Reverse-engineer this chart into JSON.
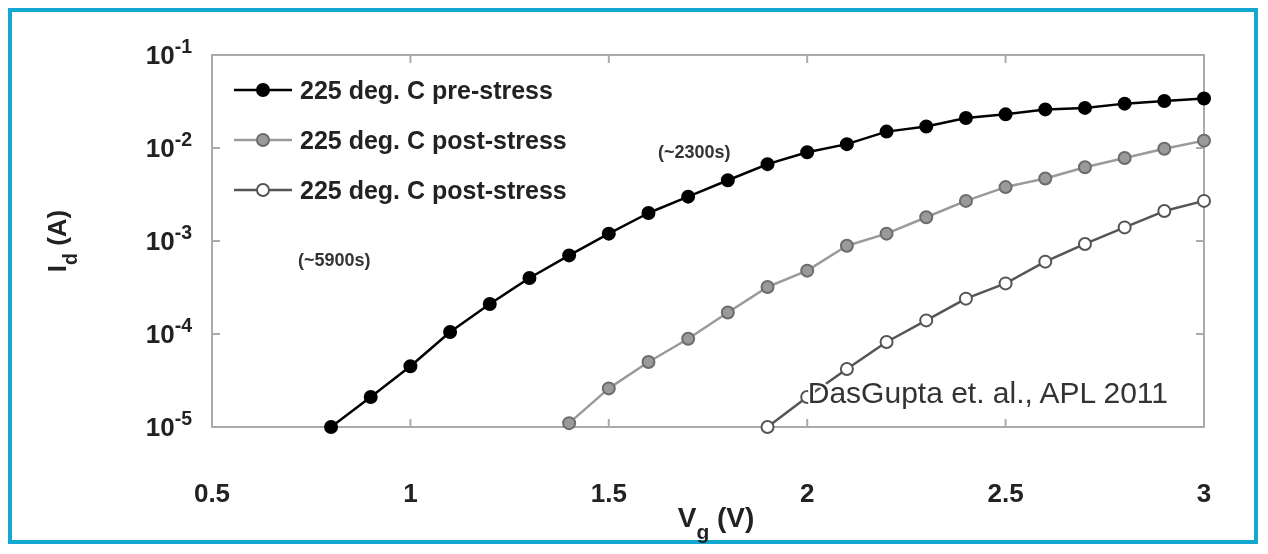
{
  "chart_data": {
    "type": "line",
    "xlabel": "V$_{g}$ (V)",
    "ylabel": "I$_{d}$ (A)",
    "log": "y",
    "xlim": [
      0.5,
      3
    ],
    "xticks": [
      0.5,
      1,
      1.5,
      2,
      2.5,
      3
    ],
    "ylim": [
      1e-05,
      0.1
    ],
    "yticks": [
      {
        "value": 0.1,
        "label": "10$^{-1}$"
      },
      {
        "value": 0.01,
        "label": "10$^{-2}$"
      },
      {
        "value": 0.001,
        "label": "10$^{-3}$"
      },
      {
        "value": 0.0001,
        "label": "10$^{-4}$"
      },
      {
        "value": 1e-05,
        "label": "10$^{-5}$"
      }
    ],
    "grid": false,
    "legend": "top left",
    "marker": "circle",
    "line_style": "solid",
    "series": [
      {
        "name": "225 deg. C pre-stress",
        "color": "#000000",
        "x": [
          0.8,
          0.9,
          1.0,
          1.1,
          1.2,
          1.3,
          1.4,
          1.5,
          1.6,
          1.7,
          1.8,
          1.9,
          2.0,
          2.1,
          2.2,
          2.3,
          2.4,
          2.5,
          2.6,
          2.7,
          2.8,
          2.9,
          3.0
        ],
        "values": [
          1e-05,
          2.1e-05,
          4.5e-05,
          0.000105,
          0.00021,
          0.0004,
          0.0007,
          0.0012,
          0.002,
          0.003,
          0.0045,
          0.0067,
          0.009,
          0.011,
          0.015,
          0.017,
          0.021,
          0.023,
          0.026,
          0.027,
          0.03,
          0.032,
          0.034
        ]
      },
      {
        "name": "225 deg. C post-stress",
        "color": "#9a9a9a",
        "x": [
          1.4,
          1.5,
          1.6,
          1.7,
          1.8,
          1.9,
          2.0,
          2.1,
          2.2,
          2.3,
          2.4,
          2.5,
          2.6,
          2.7,
          2.8,
          2.9,
          3.0
        ],
        "values": [
          1.1e-05,
          2.6e-05,
          5e-05,
          8.9e-05,
          0.00017,
          0.00032,
          0.00048,
          0.00089,
          0.0012,
          0.0018,
          0.0027,
          0.0038,
          0.0047,
          0.0062,
          0.0078,
          0.0098,
          0.012
        ]
      },
      {
        "name": "225 deg. C post-stress",
        "color": "#ffffff",
        "x": [
          1.9,
          2.0,
          2.1,
          2.2,
          2.3,
          2.4,
          2.5,
          2.6,
          2.7,
          2.8,
          2.9,
          3.0
        ],
        "values": [
          1e-05,
          2.1e-05,
          4.2e-05,
          8.2e-05,
          0.00014,
          0.00024,
          0.00035,
          0.0006,
          0.00093,
          0.0014,
          0.0021,
          0.0027
        ]
      }
    ],
    "annotations": [
      "(~2300s)",
      "(~5900s)",
      "DasGupta et. al., APL 2011"
    ]
  }
}
